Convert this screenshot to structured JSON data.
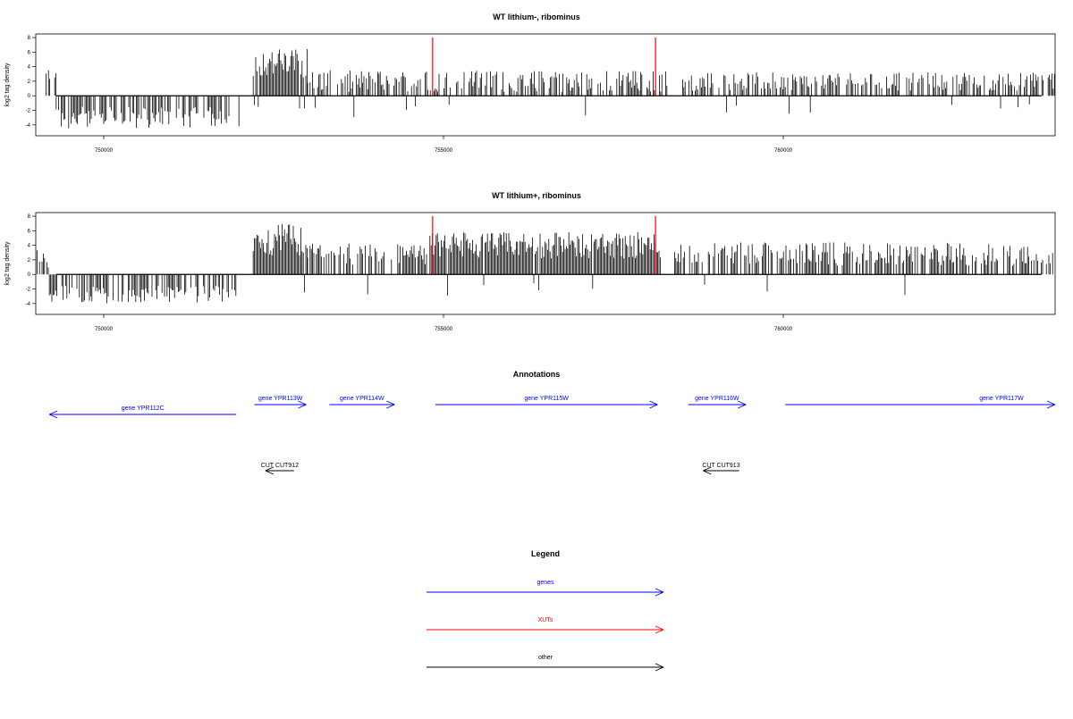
{
  "colors": {
    "gene": "#0000ff",
    "xut": "#ff0000",
    "other": "#000000",
    "bars": "#000000"
  },
  "chart_data": [
    {
      "type": "bar",
      "title": "WT lithium-, ribominus",
      "ylabel": "log2 tag density",
      "xlim": [
        749000,
        764000
      ],
      "ylim": [
        -5.5,
        8.5
      ],
      "yticks": [
        -4,
        -2,
        0,
        2,
        4,
        6,
        8
      ],
      "xticks": [
        750000,
        755000,
        760000
      ],
      "xtick_labels": [
        "750000",
        "755000",
        "760000"
      ],
      "grid": false,
      "xut_markers": [
        754840,
        758120
      ],
      "profile_segments": [
        {
          "start": 749000,
          "end": 749150,
          "mean": 0,
          "amp": 0
        },
        {
          "start": 749150,
          "end": 749300,
          "mean": 2.5,
          "amp": 1.2
        },
        {
          "start": 749300,
          "end": 752000,
          "mean": -3,
          "amp": 1.5
        },
        {
          "start": 752200,
          "end": 753000,
          "mean": 4.5,
          "amp": 2
        },
        {
          "start": 753000,
          "end": 758300,
          "mean": 2,
          "amp": 1.5
        },
        {
          "start": 758500,
          "end": 764000,
          "mean": 2,
          "amp": 1.3
        }
      ]
    },
    {
      "type": "bar",
      "title": "WT lithium+, ribominus",
      "ylabel": "log2 tag density",
      "xlim": [
        749000,
        764000
      ],
      "ylim": [
        -5.5,
        8.5
      ],
      "yticks": [
        -4,
        -2,
        0,
        2,
        4,
        6,
        8
      ],
      "xticks": [
        750000,
        755000,
        760000
      ],
      "xtick_labels": [
        "750000",
        "755000",
        "760000"
      ],
      "grid": false,
      "xut_markers": [
        754840,
        758120
      ],
      "profile_segments": [
        {
          "start": 749000,
          "end": 749200,
          "mean": 2.2,
          "amp": 1.3
        },
        {
          "start": 749200,
          "end": 752000,
          "mean": -2.8,
          "amp": 1.2
        },
        {
          "start": 752200,
          "end": 753000,
          "mean": 4.8,
          "amp": 2.2
        },
        {
          "start": 753000,
          "end": 754800,
          "mean": 2.8,
          "amp": 1.5
        },
        {
          "start": 754800,
          "end": 758200,
          "mean": 4,
          "amp": 1.8
        },
        {
          "start": 758400,
          "end": 764000,
          "mean": 2.8,
          "amp": 1.6
        }
      ]
    }
  ],
  "annotations": {
    "title": "Annotations",
    "genes": [
      {
        "label": "gene YPR112C",
        "start": 751950,
        "end": 749200,
        "track": 2
      },
      {
        "label": "gene YPR113W",
        "start": 752220,
        "end": 752980,
        "track": 1
      },
      {
        "label": "gene YPR114W",
        "start": 753320,
        "end": 754280,
        "track": 1
      },
      {
        "label": "gene YPR115W",
        "start": 754880,
        "end": 758150,
        "track": 1
      },
      {
        "label": "gene YPR116W",
        "start": 758600,
        "end": 759450,
        "track": 1
      },
      {
        "label": "gene YPR117W",
        "start": 760030,
        "end": 764600,
        "track": 1
      }
    ],
    "others": [
      {
        "label": "CUT CUT912",
        "start": 752800,
        "end": 752380
      },
      {
        "label": "CUT CUT913",
        "start": 759350,
        "end": 758820
      }
    ]
  },
  "legend": {
    "title": "Legend",
    "items": [
      {
        "label": "genes",
        "color": "#0000ff"
      },
      {
        "label": "XUTs",
        "color": "#ff0000"
      },
      {
        "label": "other",
        "color": "#000000"
      }
    ]
  }
}
